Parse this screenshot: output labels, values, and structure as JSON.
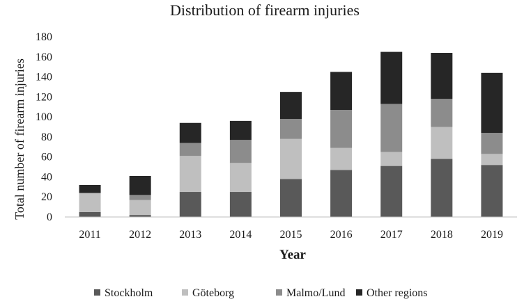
{
  "chart_data": {
    "type": "bar",
    "stacked": true,
    "title": "Distribution of firearm injuries",
    "xlabel": "Year",
    "ylabel": "Total number of firearm injuries",
    "ylim": [
      0,
      180
    ],
    "yticks": [
      0,
      20,
      40,
      60,
      80,
      100,
      120,
      140,
      160,
      180
    ],
    "grid": false,
    "legend_position": "bottom",
    "categories": [
      "2011",
      "2012",
      "2013",
      "2014",
      "2015",
      "2016",
      "2017",
      "2018",
      "2019"
    ],
    "series": [
      {
        "name": "Stockholm",
        "color": "#595959",
        "values": [
          5,
          2,
          25,
          25,
          38,
          47,
          51,
          58,
          52
        ]
      },
      {
        "name": "Göteborg",
        "color": "#bfbfbf",
        "values": [
          19,
          15,
          36,
          29,
          40,
          22,
          14,
          32,
          11
        ]
      },
      {
        "name": "Malmo/Lund",
        "color": "#8c8c8c",
        "values": [
          0,
          5,
          13,
          23,
          20,
          38,
          48,
          28,
          21
        ]
      },
      {
        "name": "Other regions",
        "color": "#262626",
        "values": [
          8,
          19,
          20,
          19,
          27,
          38,
          52,
          46,
          60
        ]
      }
    ]
  }
}
